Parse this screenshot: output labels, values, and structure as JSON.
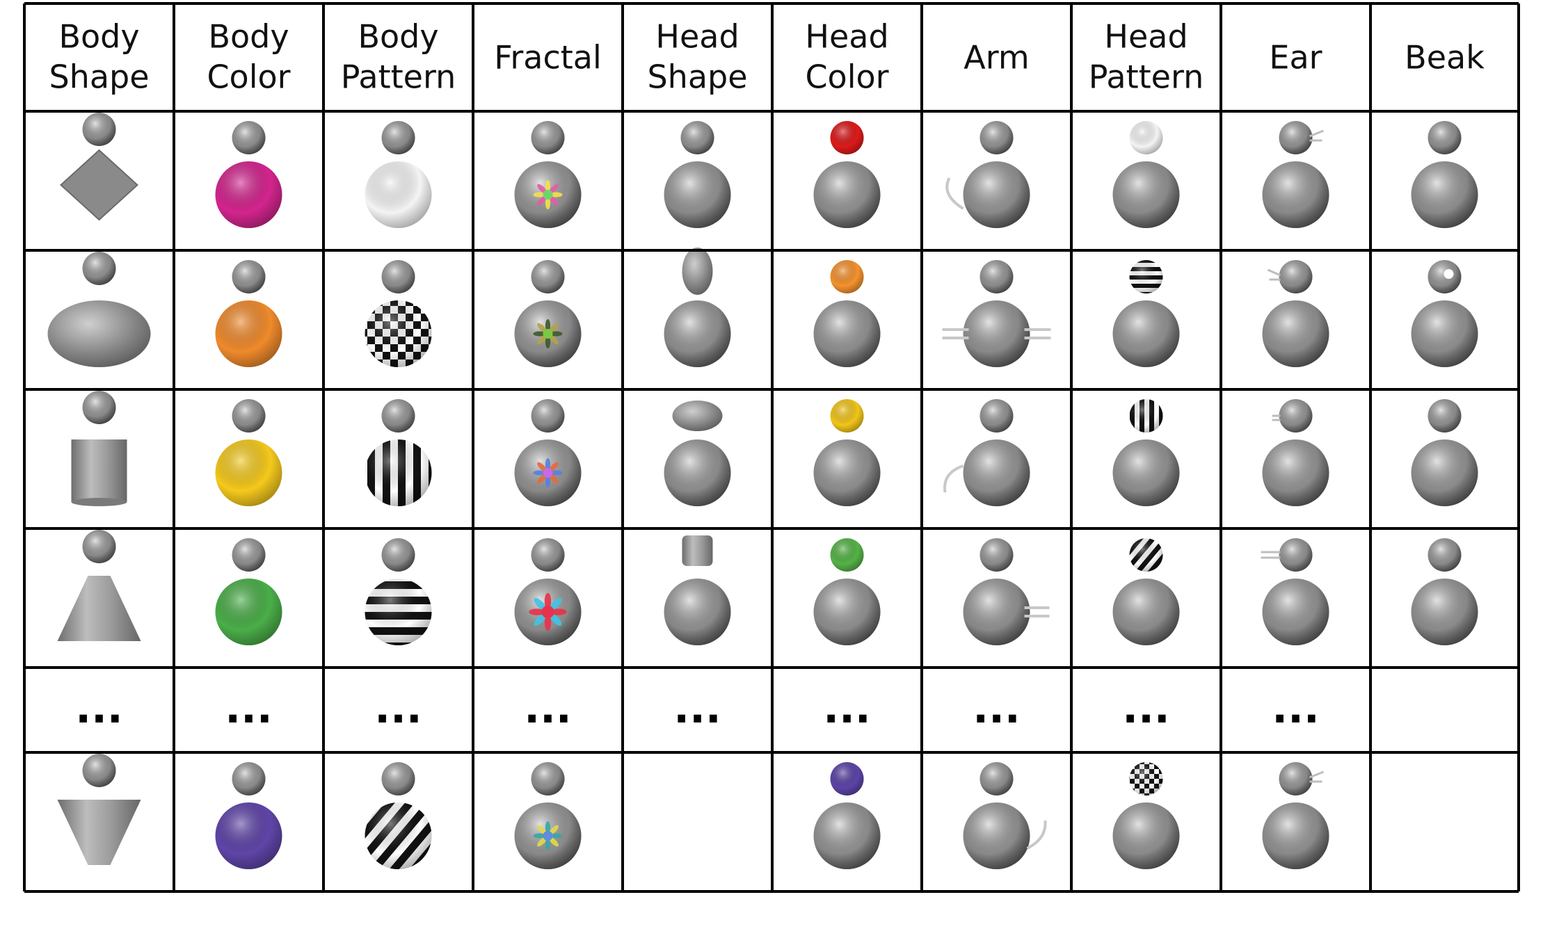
{
  "headers": [
    "Body Shape",
    "Body Color",
    "Body Pattern",
    "Fractal",
    "Head Shape",
    "Head Color",
    "Arm",
    "Head Pattern",
    "Ear",
    "Beak"
  ],
  "ellipsis": "...",
  "rows": [
    [
      {
        "kind": "body-shape",
        "shape": "diamond"
      },
      {
        "kind": "body-color",
        "color": "#d3258e"
      },
      {
        "kind": "body-pattern",
        "pattern": "white"
      },
      {
        "kind": "fractal",
        "variant": "yellow-pink"
      },
      {
        "kind": "head-shape",
        "shape": "sphere"
      },
      {
        "kind": "head-color",
        "color": "#dd1a1a"
      },
      {
        "kind": "arm",
        "arm": "left-curve"
      },
      {
        "kind": "head-pattern",
        "pattern": "white"
      },
      {
        "kind": "ear",
        "ear": "right-wisp"
      },
      {
        "kind": "beak",
        "beak": "none"
      }
    ],
    [
      {
        "kind": "body-shape",
        "shape": "flat-ellipse"
      },
      {
        "kind": "body-color",
        "color": "#f08a2c"
      },
      {
        "kind": "body-pattern",
        "pattern": "checker"
      },
      {
        "kind": "fractal",
        "variant": "dark-green"
      },
      {
        "kind": "head-shape",
        "shape": "tall-ellipse"
      },
      {
        "kind": "head-color",
        "color": "#f5922e"
      },
      {
        "kind": "arm",
        "arm": "both-straight"
      },
      {
        "kind": "head-pattern",
        "pattern": "h-stripes"
      },
      {
        "kind": "ear",
        "ear": "left-wisp"
      },
      {
        "kind": "beak",
        "beak": "hole"
      }
    ],
    [
      {
        "kind": "body-shape",
        "shape": "cylinder"
      },
      {
        "kind": "body-color",
        "color": "#f5c91c"
      },
      {
        "kind": "body-pattern",
        "pattern": "v-stripes"
      },
      {
        "kind": "fractal",
        "variant": "blue-orange"
      },
      {
        "kind": "head-shape",
        "shape": "wide-ellipse"
      },
      {
        "kind": "head-color",
        "color": "#f2c51a"
      },
      {
        "kind": "arm",
        "arm": "left-curve-low"
      },
      {
        "kind": "head-pattern",
        "pattern": "v-stripes"
      },
      {
        "kind": "ear",
        "ear": "left-short"
      },
      {
        "kind": "beak",
        "beak": "ellipsis"
      }
    ],
    [
      {
        "kind": "body-shape",
        "shape": "cone"
      },
      {
        "kind": "body-color",
        "color": "#4aae48"
      },
      {
        "kind": "body-pattern",
        "pattern": "h-stripes"
      },
      {
        "kind": "fractal",
        "variant": "red-cross"
      },
      {
        "kind": "head-shape",
        "shape": "cube"
      },
      {
        "kind": "head-color",
        "color": "#55b347"
      },
      {
        "kind": "arm",
        "arm": "right-straight"
      },
      {
        "kind": "head-pattern",
        "pattern": "diag-stripes"
      },
      {
        "kind": "ear",
        "ear": "left-long"
      },
      {
        "kind": "beak",
        "beak": "empty"
      }
    ],
    [
      {
        "kind": "ellipsis"
      },
      {
        "kind": "ellipsis"
      },
      {
        "kind": "ellipsis"
      },
      {
        "kind": "ellipsis"
      },
      {
        "kind": "ellipsis"
      },
      {
        "kind": "ellipsis"
      },
      {
        "kind": "ellipsis"
      },
      {
        "kind": "ellipsis"
      },
      {
        "kind": "ellipsis"
      },
      {
        "kind": "empty"
      }
    ],
    [
      {
        "kind": "body-shape",
        "shape": "inverted-cone"
      },
      {
        "kind": "body-color",
        "color": "#5f45a8"
      },
      {
        "kind": "body-pattern",
        "pattern": "diag-stripes"
      },
      {
        "kind": "fractal",
        "variant": "teal-yellow"
      },
      {
        "kind": "empty"
      },
      {
        "kind": "head-color",
        "color": "#5c44a6"
      },
      {
        "kind": "arm",
        "arm": "right-curve"
      },
      {
        "kind": "head-pattern",
        "pattern": "checker"
      },
      {
        "kind": "ear",
        "ear": "right-wisp"
      },
      {
        "kind": "empty"
      }
    ]
  ],
  "colors": {
    "gray": "#8c8c8c",
    "gray_light": "#cfcfcf",
    "gray_dark": "#5e5e5e",
    "line": "#000000"
  }
}
